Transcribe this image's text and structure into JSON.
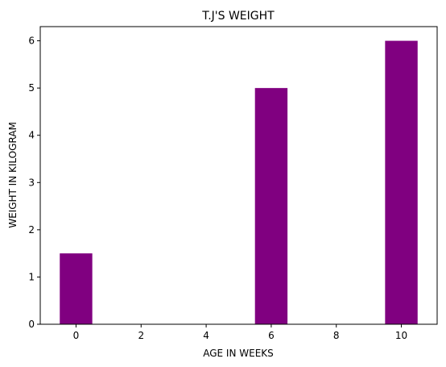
{
  "chart_data": {
    "type": "bar",
    "title": "T.J'S WEIGHT",
    "xlabel": "AGE IN WEEKS",
    "ylabel": "WEIGHT IN KILOGRAM",
    "x": [
      0,
      6,
      10
    ],
    "values": [
      1.5,
      5,
      6
    ],
    "bar_width": 1,
    "xlim": [
      -1.1,
      11.1
    ],
    "ylim": [
      0,
      6.3
    ],
    "xticks": [
      0,
      2,
      4,
      6,
      8,
      10
    ],
    "yticks": [
      0,
      1,
      2,
      3,
      4,
      5,
      6
    ],
    "bar_color": "#800080",
    "grid": false
  }
}
